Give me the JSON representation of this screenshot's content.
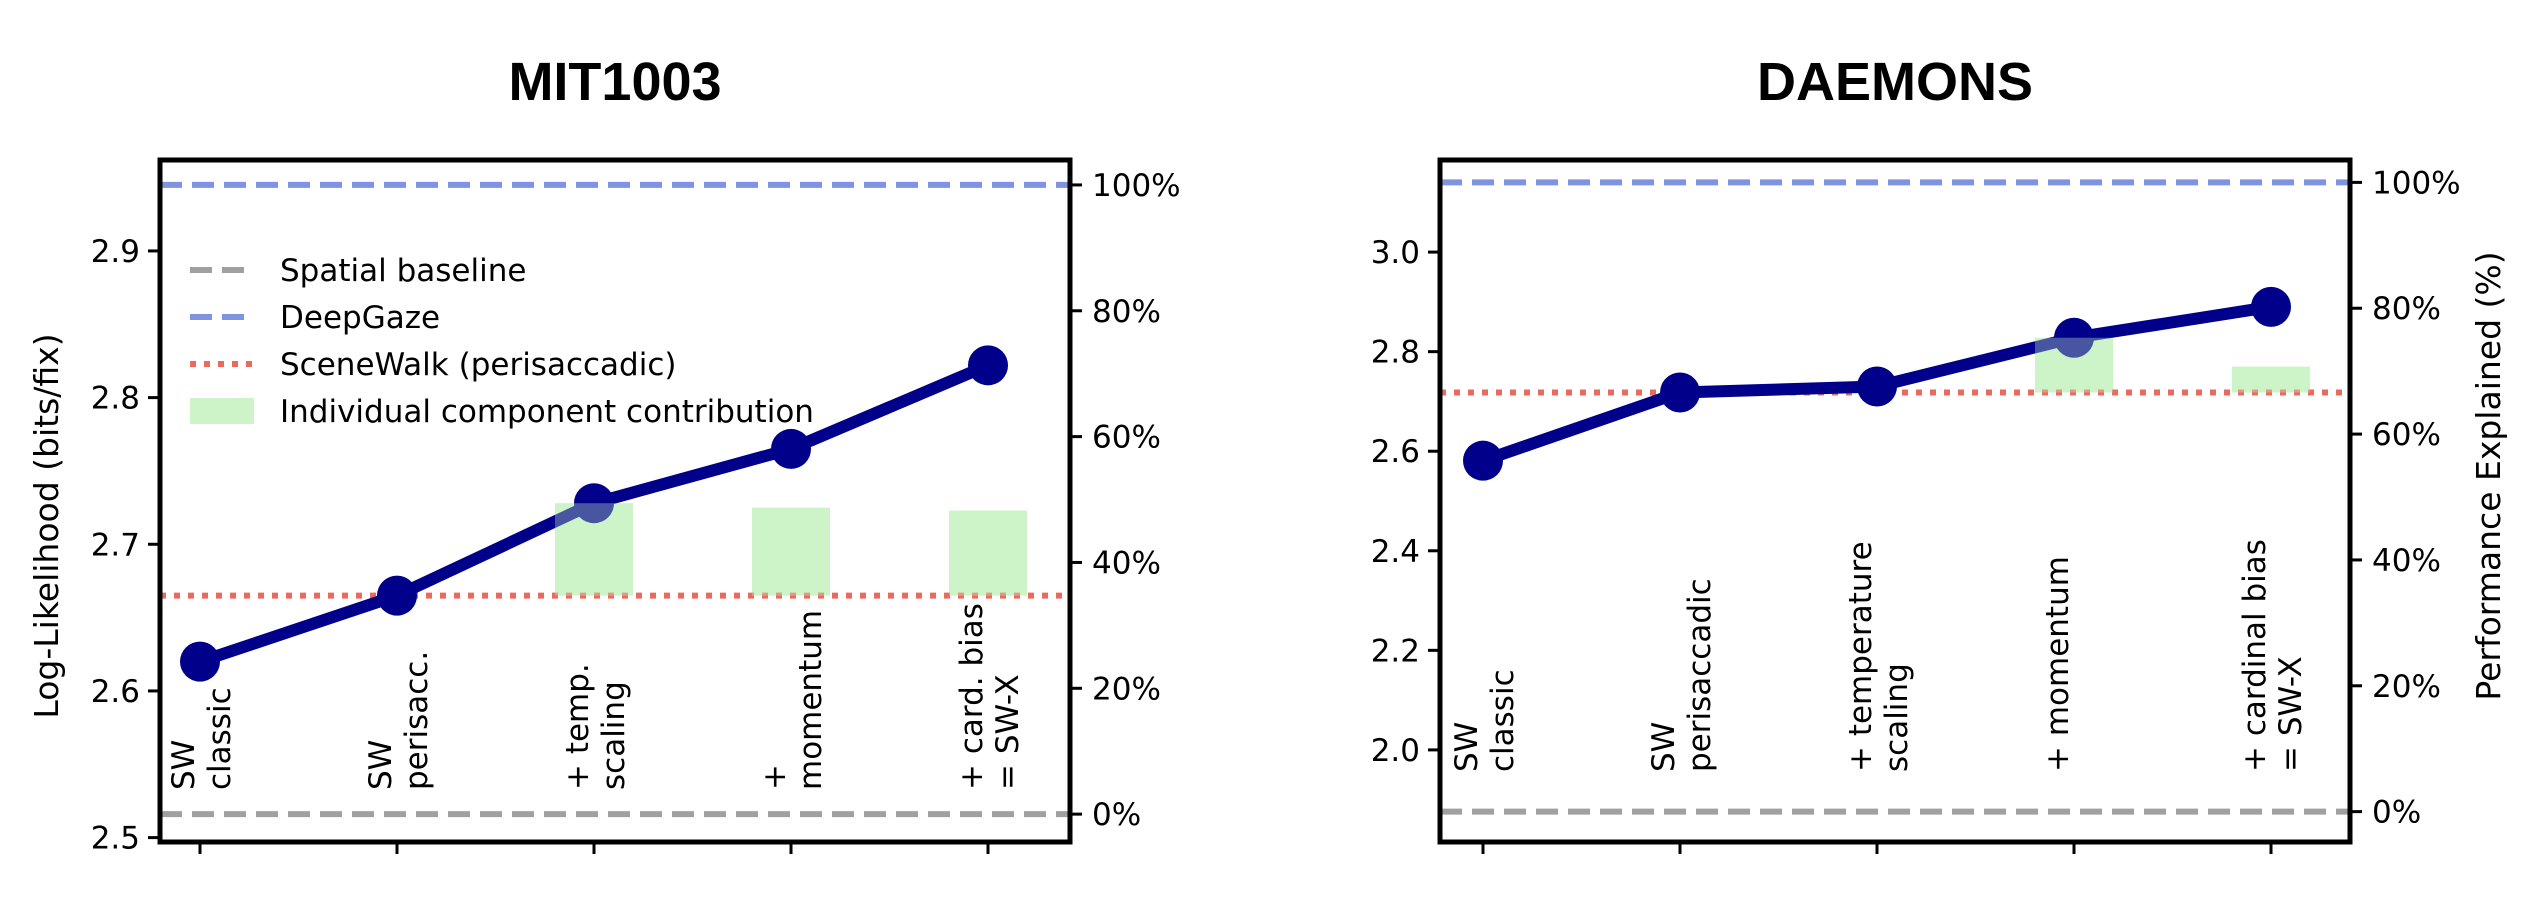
{
  "colors": {
    "baseline": "#a0a0a0",
    "deepgaze": "#7f93e1",
    "scenewalk": "#ea6b5d",
    "component": "#cdf3c9",
    "line": "#00008b"
  },
  "chart_data": [
    {
      "type": "line",
      "title": "MIT1003",
      "ylabel": "Log-Likelihood (bits/fix)",
      "y2label": "",
      "ylim": [
        2.497,
        2.962
      ],
      "yticks": [
        "2.5",
        "2.6",
        "2.7",
        "2.8",
        "2.9"
      ],
      "y2ticks": [
        "0%",
        "20%",
        "40%",
        "60%",
        "80%",
        "100%"
      ],
      "categories": [
        [
          "SW",
          "classic"
        ],
        [
          "SW",
          "perisacc."
        ],
        [
          "+ temp.",
          "scaling"
        ],
        [
          "+",
          "momentum"
        ],
        [
          "+ card. bias",
          "= SW-X"
        ]
      ],
      "values": [
        2.62,
        2.665,
        2.728,
        2.765,
        2.822
      ],
      "spatial_baseline": 2.516,
      "deepgaze": 2.945,
      "scenewalk_perisaccadic": 2.665,
      "component_contribution": [
        null,
        null,
        [
          2.665,
          2.728
        ],
        [
          2.665,
          2.725
        ],
        [
          2.665,
          2.723
        ]
      ],
      "legend": [
        "Spatial baseline",
        "DeepGaze",
        "SceneWalk (perisaccadic)",
        "Individual component contribution"
      ]
    },
    {
      "type": "line",
      "title": "DAEMONS",
      "ylabel": "",
      "y2label": "Performance Explained (%)",
      "ylim": [
        1.815,
        3.185
      ],
      "yticks": [
        "2.0",
        "2.2",
        "2.4",
        "2.6",
        "2.8",
        "3.0"
      ],
      "y2ticks": [
        "0%",
        "20%",
        "40%",
        "60%",
        "80%",
        "100%"
      ],
      "categories": [
        [
          "SW",
          "classic"
        ],
        [
          "SW",
          "perisaccadic"
        ],
        [
          "+ temperature",
          "scaling"
        ],
        [
          "+ momentum",
          ""
        ],
        [
          "+ cardinal bias",
          "= SW-X"
        ]
      ],
      "values": [
        2.581,
        2.718,
        2.73,
        2.828,
        2.89
      ],
      "spatial_baseline": 1.876,
      "deepgaze": 3.14,
      "scenewalk_perisaccadic": 2.718,
      "component_contribution": [
        null,
        null,
        null,
        [
          2.718,
          2.828
        ],
        [
          2.718,
          2.77
        ]
      ],
      "legend": []
    }
  ]
}
